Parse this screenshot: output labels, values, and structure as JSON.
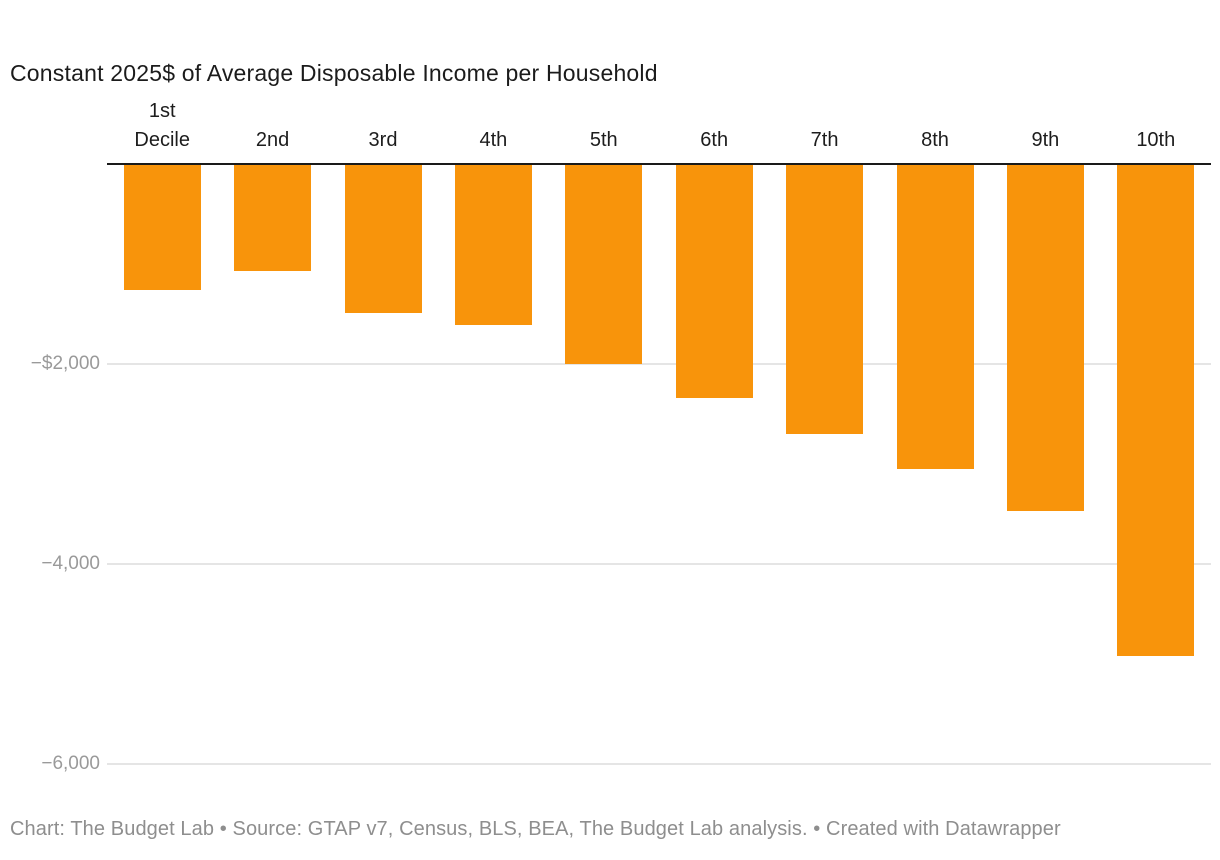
{
  "chart_data": {
    "type": "bar",
    "title": "Constant 2025$ of Average Disposable Income per Household",
    "categories": [
      "1st\nDecile",
      "2nd",
      "3rd",
      "4th",
      "5th",
      "6th",
      "7th",
      "8th",
      "9th",
      "10th"
    ],
    "values": [
      -1270,
      -1080,
      -1500,
      -1620,
      -2010,
      -2350,
      -2705,
      -3060,
      -3475,
      -4930
    ],
    "xlabel": "",
    "ylabel": "",
    "ylim": [
      -6600,
      0
    ],
    "baseline": 0,
    "grid": true,
    "legend_position": "none",
    "bar_color": "#F8940B",
    "y_ticks": [
      {
        "value": -2000,
        "label": "−$2,000"
      },
      {
        "value": -4000,
        "label": "−4,000"
      },
      {
        "value": -6000,
        "label": "−6,000"
      }
    ]
  },
  "footer": {
    "text": "Chart: The Budget Lab • Source: GTAP v7, Census, BLS, BEA, The Budget Lab analysis. • Created with Datawrapper"
  },
  "colors": {
    "bar": "#F8940B",
    "axis_line": "#1A1A1A",
    "gridline": "#E5E5E5",
    "y_tick_label": "#9A9A9A",
    "category_label": "#1D1D1D",
    "title_text": "#1B1B1B",
    "footer_text": "#8E8E8E",
    "background": "#FFFFFF"
  }
}
